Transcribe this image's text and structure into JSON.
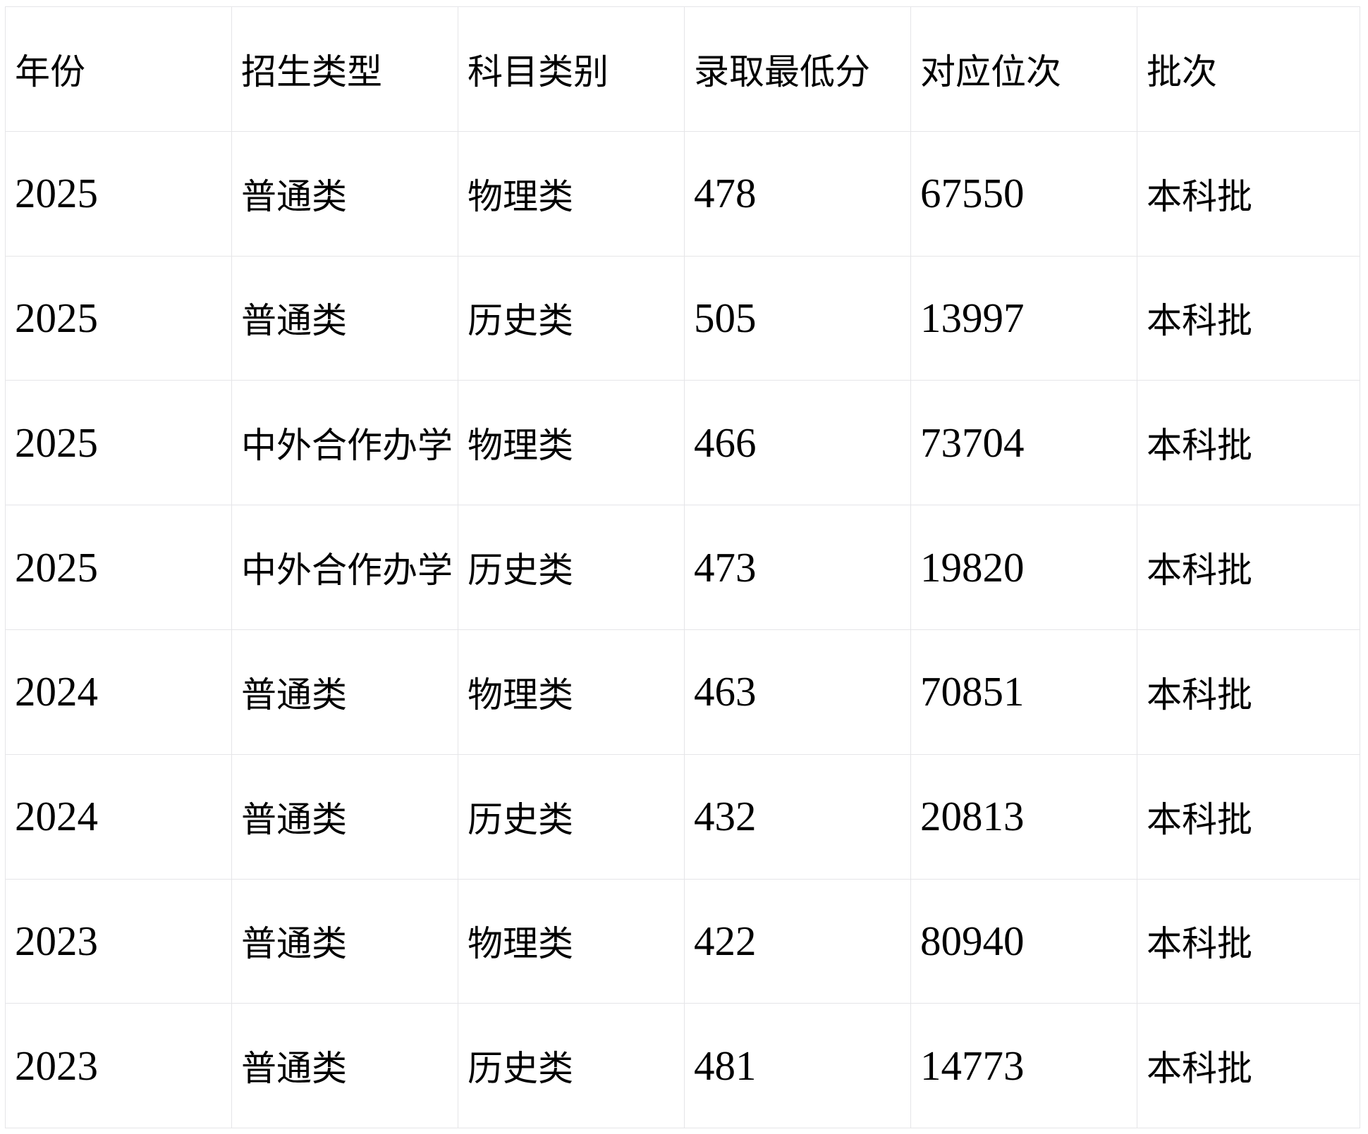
{
  "table": {
    "headers": [
      {
        "label": "年份"
      },
      {
        "label": "招生类型"
      },
      {
        "label": "科目类别"
      },
      {
        "label": "录取最低分"
      },
      {
        "label": "对应位次"
      },
      {
        "label": "批次"
      }
    ],
    "rows": [
      [
        "2025",
        "普通类",
        "物理类",
        "478",
        "67550",
        "本科批"
      ],
      [
        "2025",
        "普通类",
        "历史类",
        "505",
        "13997",
        "本科批"
      ],
      [
        "2025",
        "中外合作办学",
        "物理类",
        "466",
        "73704",
        "本科批"
      ],
      [
        "2025",
        "中外合作办学",
        "历史类",
        "473",
        "19820",
        "本科批"
      ],
      [
        "2024",
        "普通类",
        "物理类",
        "463",
        "70851",
        "本科批"
      ],
      [
        "2024",
        "普通类",
        "历史类",
        "432",
        "20813",
        "本科批"
      ],
      [
        "2023",
        "普通类",
        "物理类",
        "422",
        "80940",
        "本科批"
      ],
      [
        "2023",
        "普通类",
        "历史类",
        "481",
        "14773",
        "本科批"
      ]
    ]
  },
  "colors": {
    "background": "#ffffff",
    "grid_border": "#e5e5e8",
    "text": "#000000"
  }
}
